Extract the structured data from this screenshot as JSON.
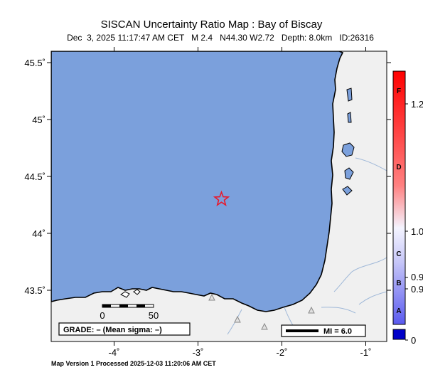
{
  "title": "SISCAN Uncertainty Ratio Map : Bay of Biscay",
  "event": {
    "date": "Dec  3, 2025",
    "time": "11:17:47 AM CET",
    "magnitude": "M 2.4",
    "location": "N44.30 W2.72",
    "depth": "Depth: 8.0km",
    "id": "ID:26316",
    "lat": 44.3,
    "lon": -2.72
  },
  "map_axes": {
    "lat_labels": [
      "45.5˚",
      "45˚",
      "44.5˚",
      "44˚",
      "43.5˚"
    ],
    "lat_values": [
      45.5,
      45.0,
      44.5,
      44.0,
      43.5
    ],
    "lon_labels": [
      "-4˚",
      "-3˚",
      "-2˚",
      "-1˚"
    ],
    "lon_values": [
      -4,
      -3,
      -2,
      -1
    ],
    "lon_range": [
      -4.75,
      -0.75
    ],
    "lat_range": [
      43.05,
      45.6
    ]
  },
  "scale_bar": {
    "labels": [
      "0",
      "50"
    ]
  },
  "grade_box": "GRADE: – (Mean sigma: –)",
  "mi_box": "MI = 6.0",
  "colorbar": {
    "grades": [
      "F",
      "D",
      "C",
      "B",
      "A"
    ],
    "values": [
      "1.2",
      "1.0",
      "0.9",
      "0.9",
      "0"
    ]
  },
  "footer": "Map Version 1 Processed 2025-12-03 11:20:06 AM CET",
  "colors": {
    "sea": "#7ba0dc",
    "land": "#f0f0f0",
    "coast": "#000000",
    "rivers": "#9fb8d8",
    "epicenter": "#e8192c"
  }
}
